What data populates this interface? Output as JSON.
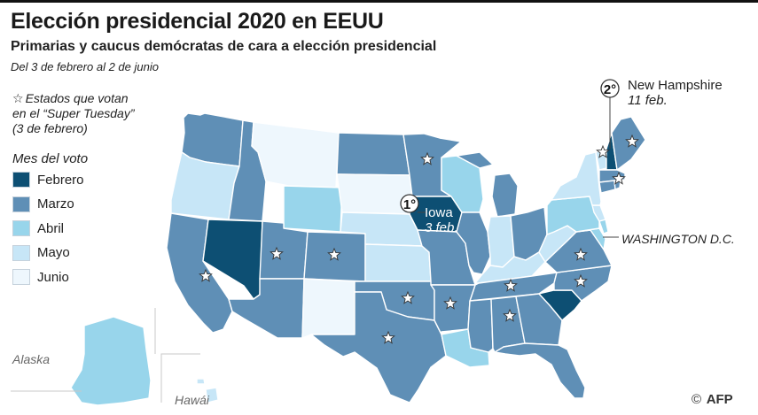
{
  "title": "Elección presidencial 2020 en EEUU",
  "subtitle": "Primarias y caucus demócratas de cara a elección presidencial",
  "date_range": "Del 3 de febrero al 2 de junio",
  "star_note": {
    "line1": "Estados que votan",
    "line2": "en el “Super Tuesday”",
    "line3": "(3 de febrero)"
  },
  "legend": {
    "title": "Mes del voto",
    "items": [
      {
        "label": "Febrero",
        "color": "#0d4f73"
      },
      {
        "label": "Marzo",
        "color": "#5f8fb6"
      },
      {
        "label": "Abril",
        "color": "#98d5eb"
      },
      {
        "label": "Mayo",
        "color": "#c7e6f7"
      },
      {
        "label": "Junio",
        "color": "#eef7fd"
      }
    ]
  },
  "callouts": {
    "nh": {
      "rank": "2°",
      "name": "New Hampshire",
      "date": "11 feb."
    },
    "iowa": {
      "rank": "1°",
      "name": "Iowa",
      "date": "3 feb."
    },
    "dc": "WASHINGTON D.C."
  },
  "region_labels": {
    "alaska": "Alaska",
    "hawaii": "Hawái"
  },
  "credit": {
    "symbol": "©",
    "agency": "AFP"
  },
  "colors": {
    "border": "#ffffff",
    "line": "#444444"
  }
}
